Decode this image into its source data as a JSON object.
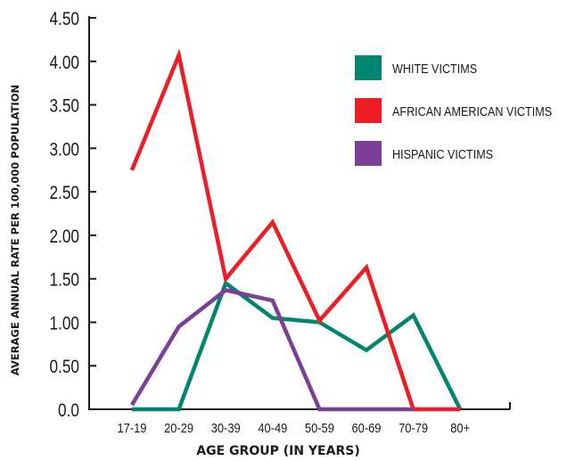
{
  "chart_data": {
    "type": "line",
    "title": "",
    "xlabel": "AGE GROUP (IN YEARS)",
    "ylabel": "AVERAGE ANNUAL RATE PER 100,000 POPULATION",
    "categories": [
      "17-19",
      "20-29",
      "30-39",
      "40-49",
      "50-59",
      "60-69",
      "70-79",
      "80+"
    ],
    "yticks": [
      "0.0",
      "0.50",
      "1.00",
      "1.50",
      "2.00",
      "2.50",
      "3.00",
      "3.50",
      "4.00",
      "4.50"
    ],
    "ylim": [
      0,
      4.5
    ],
    "grid": false,
    "legend_position": "top-right",
    "series": [
      {
        "name": "WHITE VICTIMS",
        "color": "#00856f",
        "values": [
          0.0,
          0.0,
          1.45,
          1.05,
          1.0,
          0.68,
          1.08,
          0.0
        ]
      },
      {
        "name": "AFRICAN AMERICAN VICTIMS",
        "color": "#ee1c25",
        "values": [
          2.75,
          4.07,
          1.5,
          2.15,
          1.02,
          1.63,
          0.0,
          0.0
        ]
      },
      {
        "name": "HISPANIC VICTIMS",
        "color": "#7b3f98",
        "values": [
          0.05,
          0.95,
          1.37,
          1.25,
          0.0,
          0.0,
          0.0,
          null
        ]
      }
    ]
  }
}
